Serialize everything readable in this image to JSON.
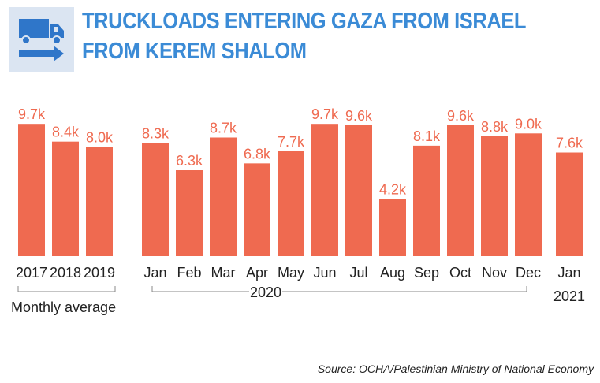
{
  "header": {
    "title": "TRUCKLOADS ENTERING GAZA FROM ISRAEL FROM KEREM SHALOM",
    "icon": "truck-icon",
    "colors": {
      "title": "#3b8bd6",
      "icon_bg": "#dbe5f2",
      "icon": "#2f76c9"
    }
  },
  "chart_data": {
    "type": "bar",
    "title": "TRUCKLOADS ENTERING GAZA FROM ISRAEL FROM KEREM SHALOM",
    "bar_color": "#ef6a50",
    "ylim": [
      0,
      10
    ],
    "groups": [
      {
        "label": "Monthly average",
        "categories": [
          "2017",
          "2018",
          "2019"
        ],
        "values": [
          9.7,
          8.4,
          8.0
        ],
        "labels": [
          "9.7k",
          "8.4k",
          "8.0k"
        ]
      },
      {
        "label": "2020",
        "categories": [
          "Jan",
          "Feb",
          "Mar",
          "Apr",
          "May",
          "Jun",
          "Jul",
          "Aug",
          "Sep",
          "Oct",
          "Nov",
          "Dec"
        ],
        "values": [
          8.3,
          6.3,
          8.7,
          6.8,
          7.7,
          9.7,
          9.6,
          4.2,
          8.1,
          9.6,
          8.8,
          9.0
        ],
        "labels": [
          "8.3k",
          "6.3k",
          "8.7k",
          "6.8k",
          "7.7k",
          "9.7k",
          "9.6k",
          "4.2k",
          "8.1k",
          "9.6k",
          "8.8k",
          "9.0k"
        ]
      },
      {
        "label": "2021",
        "categories": [
          "Jan"
        ],
        "values": [
          7.6
        ],
        "labels": [
          "7.6k"
        ]
      }
    ]
  },
  "source": "Source: OCHA/Palestinian Ministry of National Economy"
}
